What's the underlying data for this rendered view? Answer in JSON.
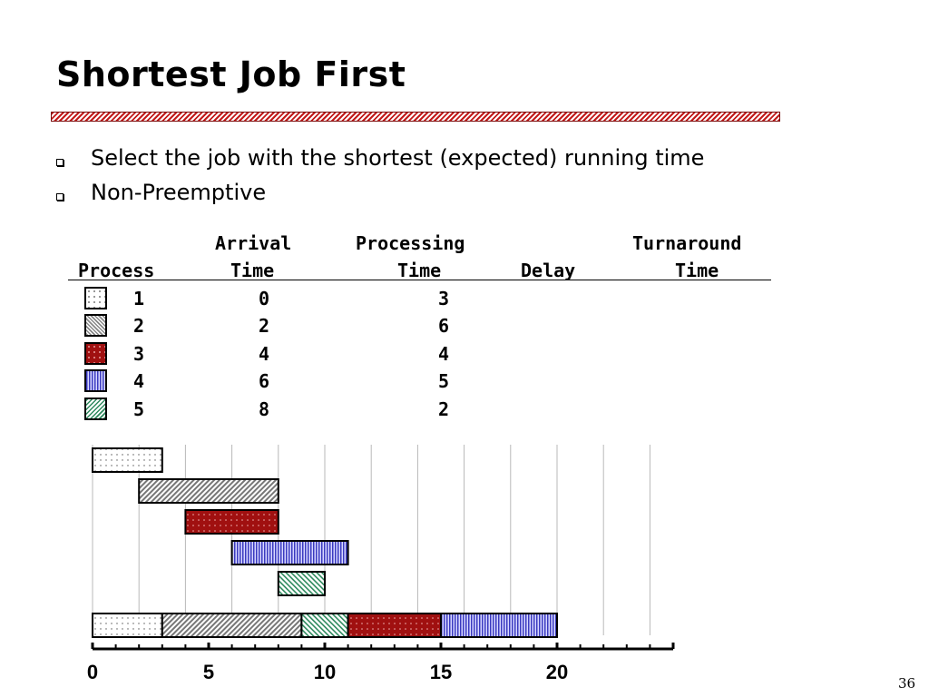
{
  "slide": {
    "title": "Shortest Job First",
    "page_number": "36",
    "bullets": [
      "Select the job with the shortest (expected) running time",
      "Non-Preemptive"
    ]
  },
  "table": {
    "headers": {
      "arrival_top": "Arrival",
      "processing_top": "Processing",
      "turnaround_top": "Turnaround",
      "process": "Process",
      "time1": "Time",
      "time2": "Time",
      "delay": "Delay",
      "time3": "Time"
    },
    "rows": [
      {
        "process": "1",
        "arrival": "0",
        "processing": "3",
        "pattern": "dotted-white"
      },
      {
        "process": "2",
        "arrival": "2",
        "processing": "6",
        "pattern": "hatched-gray"
      },
      {
        "process": "3",
        "arrival": "4",
        "processing": "4",
        "pattern": "dotted-red"
      },
      {
        "process": "4",
        "arrival": "6",
        "processing": "5",
        "pattern": "striped-blue"
      },
      {
        "process": "5",
        "arrival": "8",
        "processing": "2",
        "pattern": "hatched-green"
      }
    ]
  },
  "chart_data": {
    "type": "gantt",
    "x_ticks": [
      0,
      5,
      10,
      15,
      20
    ],
    "x_range": [
      0,
      25
    ],
    "grid": true,
    "requests": [
      {
        "process": "1",
        "start": 0,
        "end": 3
      },
      {
        "process": "2",
        "start": 2,
        "end": 8
      },
      {
        "process": "3",
        "start": 4,
        "end": 8
      },
      {
        "process": "4",
        "start": 6,
        "end": 11
      },
      {
        "process": "5",
        "start": 8,
        "end": 10
      }
    ],
    "schedule": [
      {
        "process": "1",
        "start": 0,
        "end": 3
      },
      {
        "process": "2",
        "start": 3,
        "end": 9
      },
      {
        "process": "5",
        "start": 9,
        "end": 11
      },
      {
        "process": "3",
        "start": 11,
        "end": 15
      },
      {
        "process": "4",
        "start": 15,
        "end": 20
      }
    ]
  }
}
